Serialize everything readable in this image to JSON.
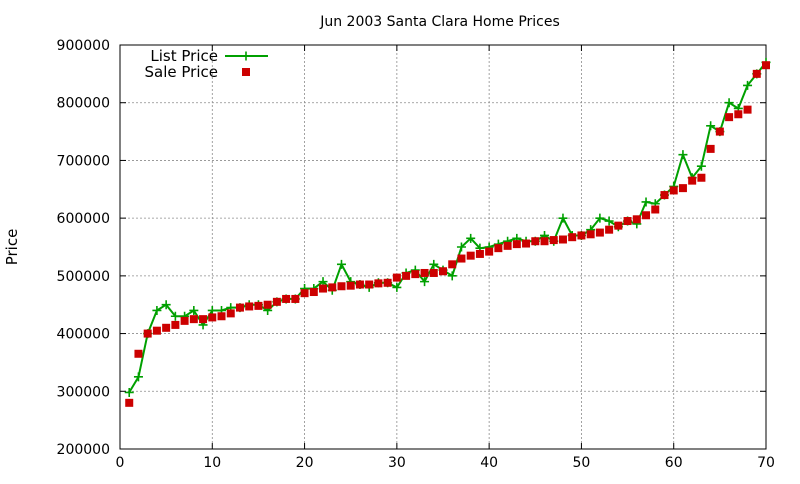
{
  "chart_data": {
    "type": "line",
    "title": "Jun 2003 Santa Clara Home Prices",
    "xlabel": "",
    "ylabel": "Price",
    "xlim": [
      0,
      70
    ],
    "ylim": [
      200000,
      900000
    ],
    "x_ticks": [
      0,
      10,
      20,
      30,
      40,
      50,
      60,
      70
    ],
    "y_ticks": [
      200000,
      300000,
      400000,
      500000,
      600000,
      700000,
      800000,
      900000
    ],
    "grid": true,
    "legend_position": "top-left",
    "series": [
      {
        "name": "List Price",
        "style": "line-with-plus-markers",
        "color": "#00a000",
        "x": [
          1,
          2,
          3,
          4,
          5,
          6,
          7,
          8,
          9,
          10,
          11,
          12,
          13,
          14,
          15,
          16,
          17,
          18,
          19,
          20,
          21,
          22,
          23,
          24,
          25,
          26,
          27,
          28,
          29,
          30,
          31,
          32,
          33,
          34,
          35,
          36,
          37,
          38,
          39,
          40,
          41,
          42,
          43,
          44,
          45,
          46,
          47,
          48,
          49,
          50,
          51,
          52,
          53,
          54,
          55,
          56,
          57,
          58,
          59,
          60,
          61,
          62,
          63,
          64,
          65,
          66,
          67,
          68,
          69,
          70
        ],
        "values": [
          298000,
          325000,
          400000,
          440000,
          450000,
          430000,
          430000,
          440000,
          415000,
          440000,
          440000,
          445000,
          445000,
          450000,
          450000,
          440000,
          455000,
          460000,
          460000,
          478000,
          478000,
          490000,
          475000,
          520000,
          490000,
          485000,
          480000,
          488000,
          488000,
          480000,
          505000,
          510000,
          490000,
          520000,
          510000,
          500000,
          550000,
          565000,
          548000,
          550000,
          555000,
          560000,
          565000,
          560000,
          560000,
          570000,
          560000,
          600000,
          570000,
          570000,
          580000,
          600000,
          595000,
          585000,
          595000,
          590000,
          628000,
          625000,
          640000,
          655000,
          710000,
          670000,
          690000,
          760000,
          750000,
          800000,
          790000,
          830000,
          850000,
          870000
        ]
      },
      {
        "name": "Sale Price",
        "style": "square-markers",
        "color": "#cc0000",
        "x": [
          1,
          2,
          3,
          4,
          5,
          6,
          7,
          8,
          9,
          10,
          11,
          12,
          13,
          14,
          15,
          16,
          17,
          18,
          19,
          20,
          21,
          22,
          23,
          24,
          25,
          26,
          27,
          28,
          29,
          30,
          31,
          32,
          33,
          34,
          35,
          36,
          37,
          38,
          39,
          40,
          41,
          42,
          43,
          44,
          45,
          46,
          47,
          48,
          49,
          50,
          51,
          52,
          53,
          54,
          55,
          56,
          57,
          58,
          59,
          60,
          61,
          62,
          63,
          64,
          65,
          66,
          67,
          68,
          69,
          70
        ],
        "values": [
          280000,
          365000,
          400000,
          405000,
          410000,
          415000,
          422000,
          425000,
          425000,
          428000,
          430000,
          435000,
          445000,
          447000,
          448000,
          450000,
          455000,
          460000,
          460000,
          470000,
          472000,
          478000,
          480000,
          482000,
          483000,
          485000,
          485000,
          487000,
          488000,
          497000,
          500000,
          503000,
          505000,
          505000,
          508000,
          520000,
          530000,
          535000,
          538000,
          542000,
          548000,
          552000,
          555000,
          556000,
          560000,
          560000,
          562000,
          563000,
          567000,
          570000,
          572000,
          575000,
          580000,
          587000,
          595000,
          598000,
          605000,
          615000,
          640000,
          648000,
          652000,
          665000,
          670000,
          720000,
          750000,
          775000,
          780000,
          788000,
          850000,
          865000
        ]
      }
    ]
  }
}
